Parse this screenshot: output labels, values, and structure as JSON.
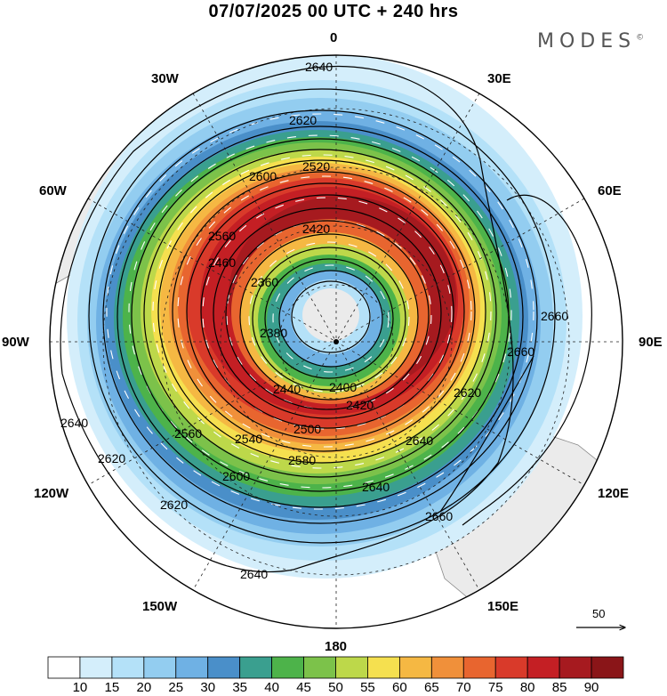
{
  "header": {
    "title": "07/07/2025  00 UTC  + 240 hrs",
    "brand": "MODES",
    "brand_mark": "©"
  },
  "map": {
    "projection": "south-polar-stereographic",
    "longitude_labels": {
      "top": "0",
      "top_right": "30E",
      "upper_right": "60E",
      "right": "90E",
      "lower_right": "120E",
      "bottom_right": "150E",
      "bottom": "180",
      "bottom_left": "150W",
      "lower_left": "120W",
      "left": "90W",
      "upper_left": "60W",
      "top_left": "30W"
    },
    "contour_labels": [
      "2640",
      "2620",
      "2600",
      "2580",
      "2560",
      "2540",
      "2520",
      "2500",
      "2480",
      "2460",
      "2440",
      "2420",
      "2400",
      "2380",
      "2360",
      "2660"
    ],
    "wind_vector_reference": "50",
    "colors": {
      "land": "#ebebeb",
      "coast": "#777777",
      "contour": "#000000",
      "vector": "#ffffff"
    }
  },
  "colorbar": {
    "ticks": [
      "10",
      "15",
      "20",
      "25",
      "30",
      "35",
      "40",
      "45",
      "50",
      "55",
      "60",
      "65",
      "70",
      "75",
      "80",
      "85",
      "90"
    ],
    "colors": [
      "#ffffff",
      "#d4eefb",
      "#b4e1f8",
      "#93cdf0",
      "#6fb1e4",
      "#4a8fc9",
      "#3a9f8f",
      "#4db34a",
      "#7cc24a",
      "#bdd84a",
      "#f5e04f",
      "#f5b843",
      "#f0903a",
      "#e8652f",
      "#d93a2a",
      "#c41f24",
      "#a61a1f",
      "#8a1518"
    ]
  }
}
